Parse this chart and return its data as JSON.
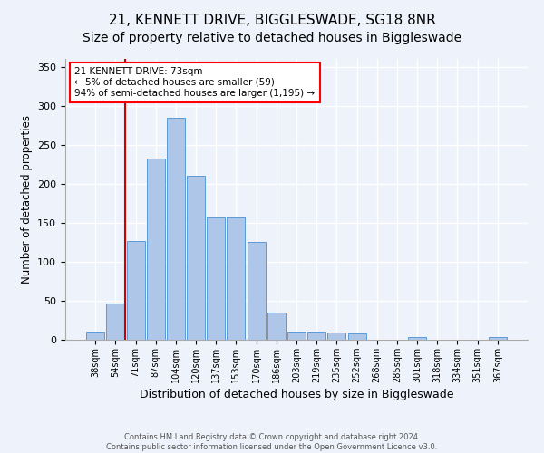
{
  "title": "21, KENNETT DRIVE, BIGGLESWADE, SG18 8NR",
  "subtitle": "Size of property relative to detached houses in Biggleswade",
  "xlabel": "Distribution of detached houses by size in Biggleswade",
  "ylabel": "Number of detached properties",
  "bar_labels": [
    "38sqm",
    "54sqm",
    "71sqm",
    "87sqm",
    "104sqm",
    "120sqm",
    "137sqm",
    "153sqm",
    "170sqm",
    "186sqm",
    "203sqm",
    "219sqm",
    "235sqm",
    "252sqm",
    "268sqm",
    "285sqm",
    "301sqm",
    "318sqm",
    "334sqm",
    "351sqm",
    "367sqm"
  ],
  "bar_values": [
    10,
    46,
    127,
    232,
    285,
    210,
    157,
    157,
    126,
    35,
    10,
    10,
    9,
    8,
    0,
    0,
    3,
    0,
    0,
    0,
    3
  ],
  "bar_color": "#aec6e8",
  "bar_edge_color": "#5b9bd5",
  "annotation_box_text": "21 KENNETT DRIVE: 73sqm\n← 5% of detached houses are smaller (59)\n94% of semi-detached houses are larger (1,195) →",
  "vline_x": 2.0,
  "vline_color": "#cc0000",
  "ylim": [
    0,
    360
  ],
  "yticks": [
    0,
    50,
    100,
    150,
    200,
    250,
    300,
    350
  ],
  "title_fontsize": 11,
  "xlabel_fontsize": 9,
  "ylabel_fontsize": 8.5,
  "tick_fontsize": 7,
  "ytick_fontsize": 8,
  "annot_fontsize": 7.5,
  "footer_line1": "Contains HM Land Registry data © Crown copyright and database right 2024.",
  "footer_line2": "Contains public sector information licensed under the Open Government Licence v3.0.",
  "background_color": "#eef2fa",
  "grid_color": "#ffffff"
}
